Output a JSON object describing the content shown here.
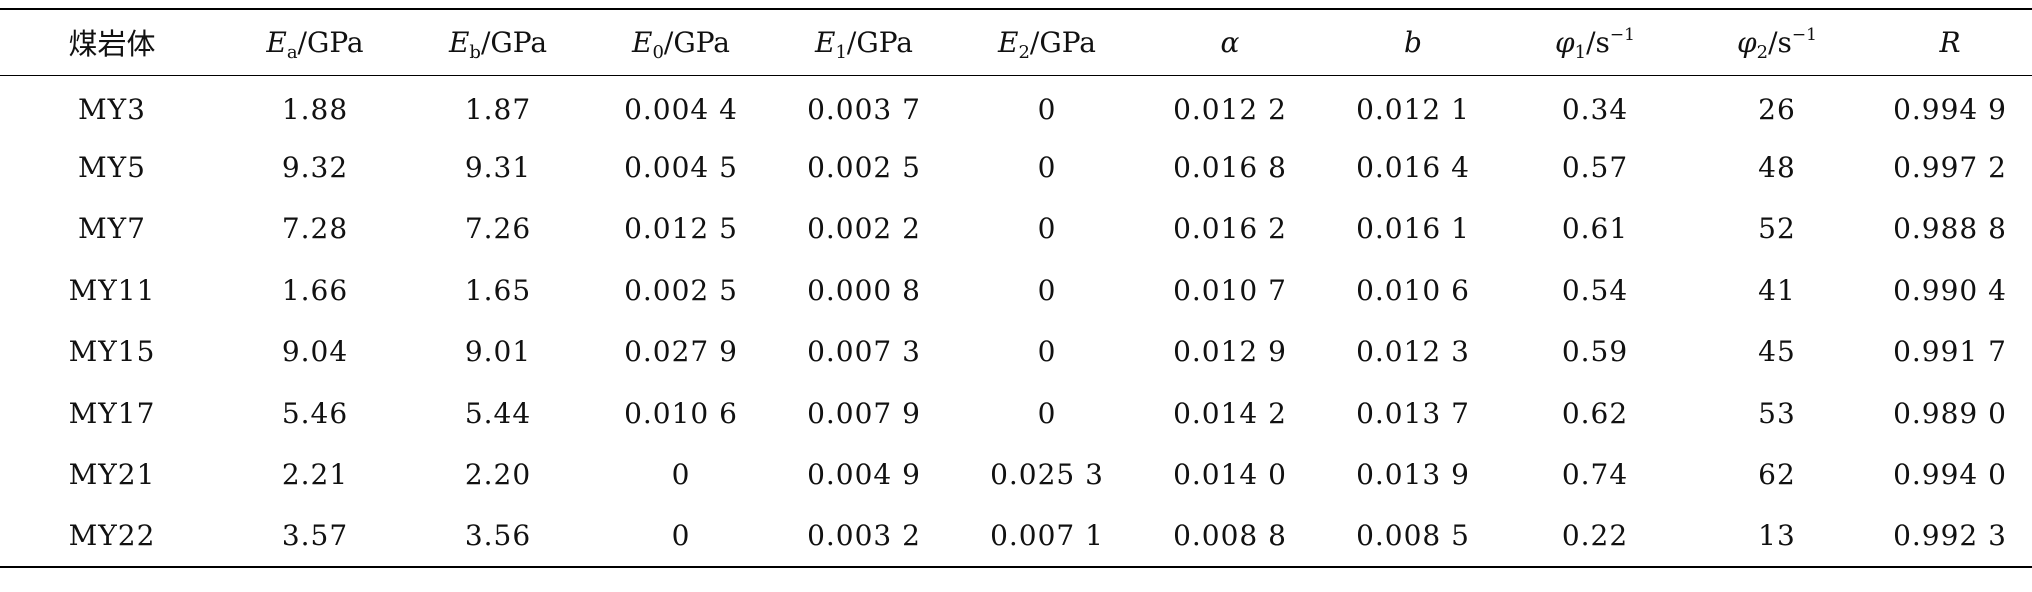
{
  "table": {
    "headers": [
      {
        "main": "煤岩体",
        "sub": "",
        "unit": "",
        "sup": "",
        "italic": false,
        "cn": true
      },
      {
        "main": "E",
        "sub": "a",
        "unit": "/GPa",
        "sup": "",
        "italic": true,
        "cn": false
      },
      {
        "main": "E",
        "sub": "b",
        "unit": "/GPa",
        "sup": "",
        "italic": true,
        "cn": false
      },
      {
        "main": "E",
        "sub": "0",
        "unit": "/GPa",
        "sup": "",
        "italic": true,
        "cn": false
      },
      {
        "main": "E",
        "sub": "1",
        "unit": "/GPa",
        "sup": "",
        "italic": true,
        "cn": false
      },
      {
        "main": "E",
        "sub": "2",
        "unit": "/GPa",
        "sup": "",
        "italic": true,
        "cn": false
      },
      {
        "main": "α",
        "sub": "",
        "unit": "",
        "sup": "",
        "italic": true,
        "cn": false
      },
      {
        "main": "b",
        "sub": "",
        "unit": "",
        "sup": "",
        "italic": true,
        "cn": false
      },
      {
        "main": "φ",
        "sub": "1",
        "unit": "/s",
        "sup": "−1",
        "italic": true,
        "cn": false
      },
      {
        "main": "φ",
        "sub": "2",
        "unit": "/s",
        "sup": "−1",
        "italic": true,
        "cn": false
      },
      {
        "main": "R",
        "sub": "",
        "unit": "",
        "sup": "",
        "italic": true,
        "cn": false
      }
    ],
    "rows": [
      [
        "MY3",
        "1.88",
        "1.87",
        "0.004 4",
        "0.003 7",
        "0",
        "0.012 2",
        "0.012 1",
        "0.34",
        "26",
        "0.994 9"
      ],
      [
        "MY5",
        "9.32",
        "9.31",
        "0.004 5",
        "0.002 5",
        "0",
        "0.016 8",
        "0.016 4",
        "0.57",
        "48",
        "0.997 2"
      ],
      [
        "MY7",
        "7.28",
        "7.26",
        "0.012 5",
        "0.002 2",
        "0",
        "0.016 2",
        "0.016 1",
        "0.61",
        "52",
        "0.988 8"
      ],
      [
        "MY11",
        "1.66",
        "1.65",
        "0.002 5",
        "0.000 8",
        "0",
        "0.010 7",
        "0.010 6",
        "0.54",
        "41",
        "0.990 4"
      ],
      [
        "MY15",
        "9.04",
        "9.01",
        "0.027 9",
        "0.007 3",
        "0",
        "0.012 9",
        "0.012 3",
        "0.59",
        "45",
        "0.991 7"
      ],
      [
        "MY17",
        "5.46",
        "5.44",
        "0.010 6",
        "0.007 9",
        "0",
        "0.014 2",
        "0.013 7",
        "0.62",
        "53",
        "0.989 0"
      ],
      [
        "MY21",
        "2.21",
        "2.20",
        "0",
        "0.004 9",
        "0.025 3",
        "0.014 0",
        "0.013 9",
        "0.74",
        "62",
        "0.994 0"
      ],
      [
        "MY22",
        "3.57",
        "3.56",
        "0",
        "0.003 2",
        "0.007 1",
        "0.008 8",
        "0.008 5",
        "0.22",
        "13",
        "0.992 3"
      ]
    ]
  }
}
